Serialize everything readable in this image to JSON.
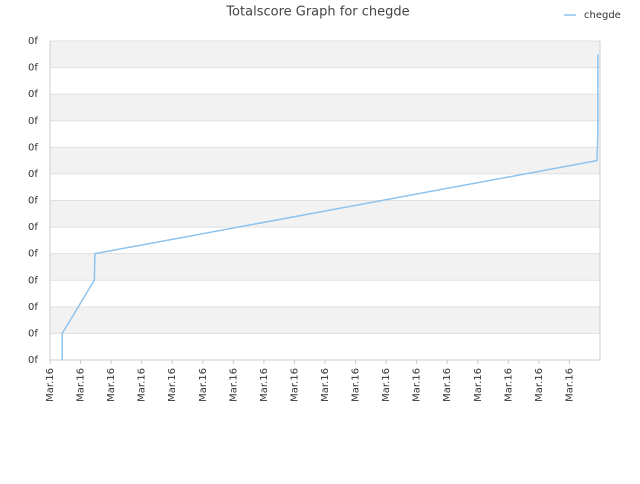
{
  "chart_data": {
    "type": "line",
    "title": "Totalscore Graph for chegde",
    "series": [
      {
        "name": "chegde",
        "color": "#8dc3ee",
        "x": [
          0.4,
          0.4,
          1.45,
          1.47,
          17.9,
          17.93,
          17.93
        ],
        "values": [
          0,
          1,
          3,
          4,
          7.5,
          8.5,
          11.5
        ]
      }
    ],
    "xlim": [
      0,
      18
    ],
    "xticks": [
      {
        "value": 0,
        "label": "Mar.16"
      },
      {
        "value": 1,
        "label": "Mar.16"
      },
      {
        "value": 2,
        "label": "Mar.16"
      },
      {
        "value": 3,
        "label": "Mar.16"
      },
      {
        "value": 4,
        "label": "Mar.16"
      },
      {
        "value": 5,
        "label": "Mar.16"
      },
      {
        "value": 6,
        "label": "Mar.16"
      },
      {
        "value": 7,
        "label": "Mar.16"
      },
      {
        "value": 8,
        "label": "Mar.16"
      },
      {
        "value": 9,
        "label": "Mar.16"
      },
      {
        "value": 10,
        "label": "Mar.16"
      },
      {
        "value": 11,
        "label": "Mar.16"
      },
      {
        "value": 12,
        "label": "Mar.16"
      },
      {
        "value": 13,
        "label": "Mar.16"
      },
      {
        "value": 14,
        "label": "Mar.16"
      },
      {
        "value": 15,
        "label": "Mar.16"
      },
      {
        "value": 16,
        "label": "Mar.16"
      },
      {
        "value": 17,
        "label": "Mar.16"
      }
    ],
    "ylim": [
      0,
      12
    ],
    "yticks": [
      {
        "value": 0,
        "label": "0f"
      },
      {
        "value": 1,
        "label": "0f"
      },
      {
        "value": 2,
        "label": "0f"
      },
      {
        "value": 3,
        "label": "0f"
      },
      {
        "value": 4,
        "label": "0f"
      },
      {
        "value": 5,
        "label": "0f"
      },
      {
        "value": 6,
        "label": "0f"
      },
      {
        "value": 7,
        "label": "0f"
      },
      {
        "value": 8,
        "label": "0f"
      },
      {
        "value": 9,
        "label": "0f"
      },
      {
        "value": 10,
        "label": "0f"
      },
      {
        "value": 11,
        "label": "0f"
      },
      {
        "value": 12,
        "label": "0f"
      }
    ],
    "grid": true,
    "legend": "top-right"
  }
}
